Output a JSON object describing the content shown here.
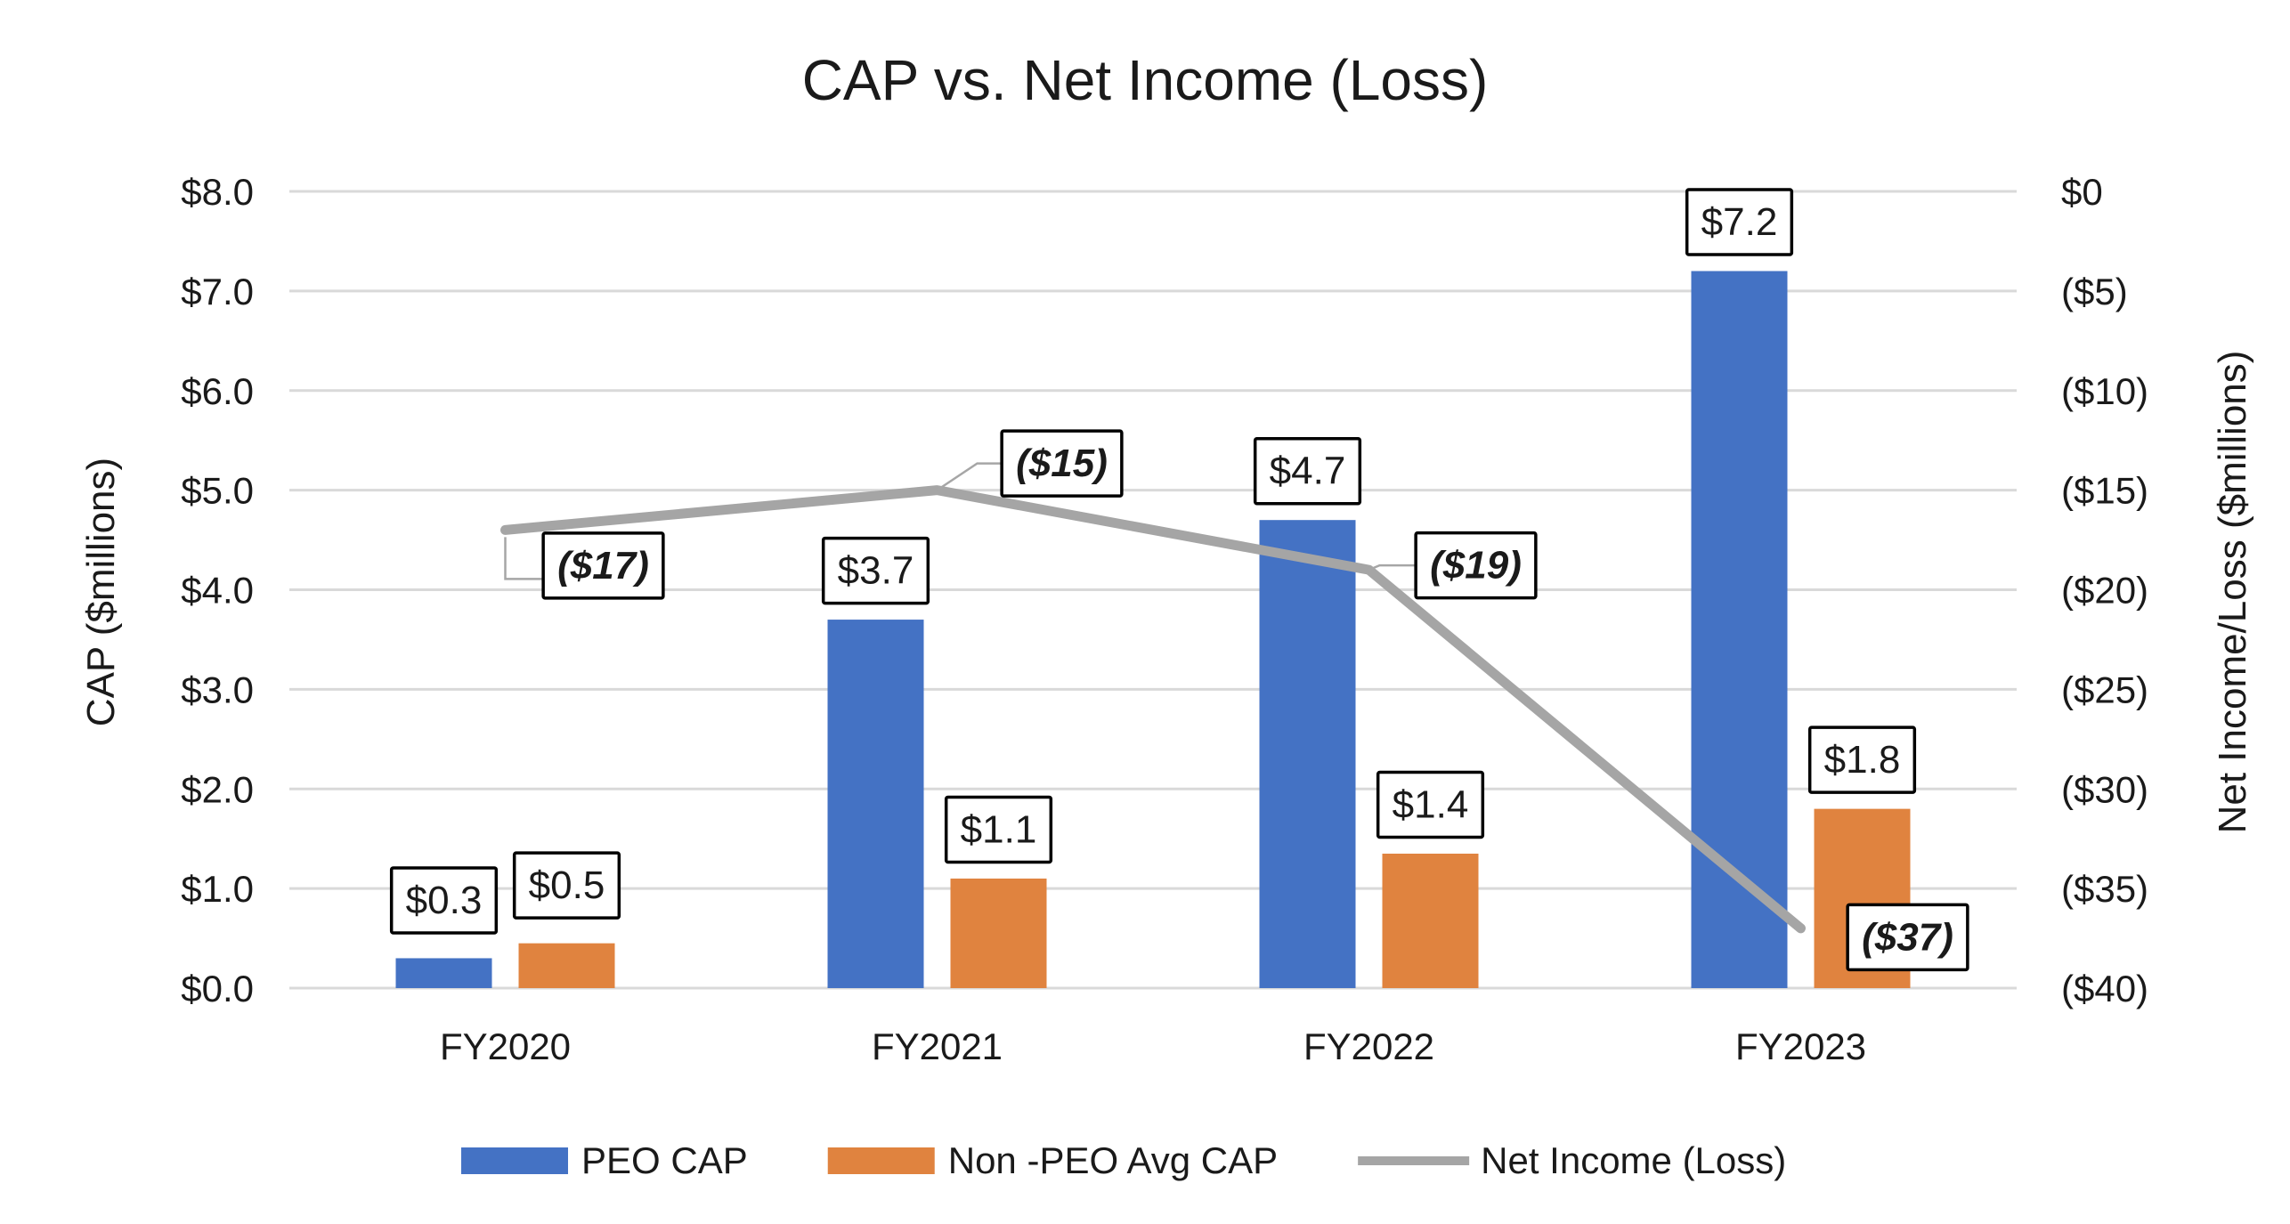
{
  "chart_data": {
    "type": "bar",
    "title": "CAP vs. Net Income (Loss)",
    "categories": [
      "FY2020",
      "FY2021",
      "FY2022",
      "FY2023"
    ],
    "ylabel": "CAP ($millions)",
    "ylim": [
      0,
      8
    ],
    "y_ticks": [
      "$0.0",
      "$1.0",
      "$2.0",
      "$3.0",
      "$4.0",
      "$5.0",
      "$6.0",
      "$7.0",
      "$8.0"
    ],
    "y2label": "Net Income/Loss ($millions)",
    "y2lim": [
      -40,
      0
    ],
    "y2_ticks": [
      "($40)",
      "($35)",
      "($30)",
      "($25)",
      "($20)",
      "($15)",
      "($10)",
      "($5)",
      "$0"
    ],
    "grid": true,
    "legend_position": "bottom",
    "series": [
      {
        "name": "PEO CAP",
        "kind": "bar",
        "axis": "left",
        "color": "#4472c4",
        "values": [
          0.3,
          3.7,
          4.7,
          7.2
        ],
        "labels": [
          "$0.3",
          "$3.7",
          "$4.7",
          "$7.2"
        ]
      },
      {
        "name": "Non -PEO Avg CAP",
        "kind": "bar",
        "axis": "left",
        "color": "#e0833f",
        "values": [
          0.45,
          1.1,
          1.35,
          1.8
        ],
        "labels": [
          "$0.5",
          "$1.1",
          "$1.4",
          "$1.8"
        ]
      },
      {
        "name": "Net Income (Loss)",
        "kind": "line",
        "axis": "right",
        "color": "#a5a5a5",
        "values": [
          -17,
          -15,
          -19,
          -37
        ],
        "labels": [
          "($17)",
          "($15)",
          "($19)",
          "($37)"
        ]
      }
    ]
  }
}
